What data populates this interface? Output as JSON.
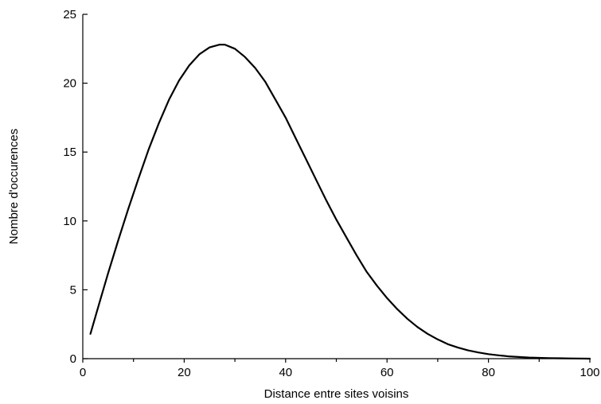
{
  "chart_data": {
    "type": "line",
    "title": "",
    "xlabel": "Distance entre sites voisins",
    "ylabel": "Nombre d'occurences",
    "xlim": [
      0,
      100
    ],
    "ylim": [
      0,
      25
    ],
    "x_ticks": [
      0,
      20,
      40,
      60,
      80,
      100
    ],
    "x_minor_ticks": [
      10,
      30,
      50,
      70,
      90
    ],
    "y_ticks": [
      0,
      5,
      10,
      15,
      20,
      25
    ],
    "grid": false,
    "legend": "none",
    "series": [
      {
        "color": "#000000",
        "x": [
          1.5,
          3,
          5,
          7,
          9,
          11,
          13,
          15,
          17,
          19,
          21,
          23,
          25,
          27,
          28,
          30,
          32,
          34,
          36,
          38,
          40,
          42,
          44,
          46,
          48,
          50,
          52,
          54,
          56,
          58,
          60,
          62,
          64,
          66,
          68,
          70,
          72,
          74,
          76,
          78,
          80,
          82,
          84,
          86,
          88,
          90,
          92,
          94,
          96,
          98,
          100
        ],
        "y": [
          1.8,
          3.7,
          6.2,
          8.6,
          10.9,
          13.1,
          15.2,
          17.1,
          18.8,
          20.2,
          21.3,
          22.1,
          22.6,
          22.8,
          22.8,
          22.5,
          21.9,
          21.1,
          20.1,
          18.8,
          17.5,
          16.0,
          14.5,
          13.0,
          11.5,
          10.1,
          8.8,
          7.5,
          6.3,
          5.3,
          4.4,
          3.6,
          2.9,
          2.3,
          1.8,
          1.4,
          1.05,
          0.8,
          0.6,
          0.45,
          0.33,
          0.24,
          0.17,
          0.12,
          0.08,
          0.06,
          0.04,
          0.03,
          0.02,
          0.01,
          0.0
        ]
      }
    ]
  }
}
